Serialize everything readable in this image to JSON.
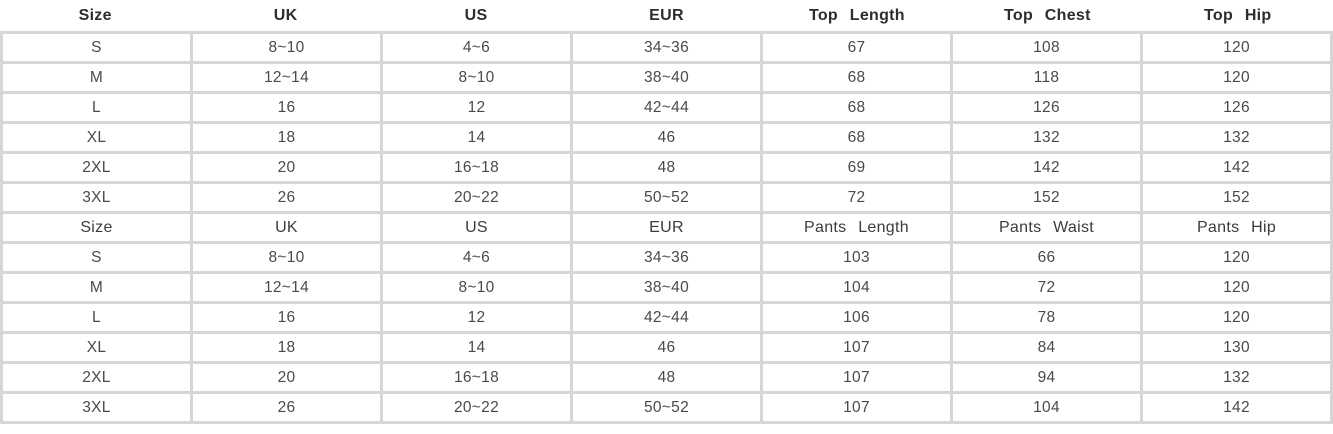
{
  "chart_data": {
    "type": "table",
    "sections": [
      {
        "name": "top",
        "headers": [
          "Size",
          "UK",
          "US",
          "EUR",
          "Top Length",
          "Top Chest",
          "Top Hip"
        ],
        "rows": [
          [
            "S",
            "8~10",
            "4~6",
            "34~36",
            "67",
            "108",
            "120"
          ],
          [
            "M",
            "12~14",
            "8~10",
            "38~40",
            "68",
            "118",
            "120"
          ],
          [
            "L",
            "16",
            "12",
            "42~44",
            "68",
            "126",
            "126"
          ],
          [
            "XL",
            "18",
            "14",
            "46",
            "68",
            "132",
            "132"
          ],
          [
            "2XL",
            "20",
            "16~18",
            "48",
            "69",
            "142",
            "142"
          ],
          [
            "3XL",
            "26",
            "20~22",
            "50~52",
            "72",
            "152",
            "152"
          ]
        ]
      },
      {
        "name": "pants",
        "headers": [
          "Size",
          "UK",
          "US",
          "EUR",
          "Pants Length",
          "Pants Waist",
          "Pants Hip"
        ],
        "rows": [
          [
            "S",
            "8~10",
            "4~6",
            "34~36",
            "103",
            "66",
            "120"
          ],
          [
            "M",
            "12~14",
            "8~10",
            "38~40",
            "104",
            "72",
            "120"
          ],
          [
            "L",
            "16",
            "12",
            "42~44",
            "106",
            "78",
            "120"
          ],
          [
            "XL",
            "18",
            "14",
            "46",
            "107",
            "84",
            "130"
          ],
          [
            "2XL",
            "20",
            "16~18",
            "48",
            "107",
            "94",
            "132"
          ],
          [
            "3XL",
            "26",
            "20~22",
            "50~52",
            "107",
            "104",
            "142"
          ]
        ]
      }
    ]
  },
  "colors": {
    "grid_border": "#d6d6d6",
    "header_text": "#2d2d2d",
    "cell_text": "#4a4a4a",
    "background": "#ffffff"
  }
}
